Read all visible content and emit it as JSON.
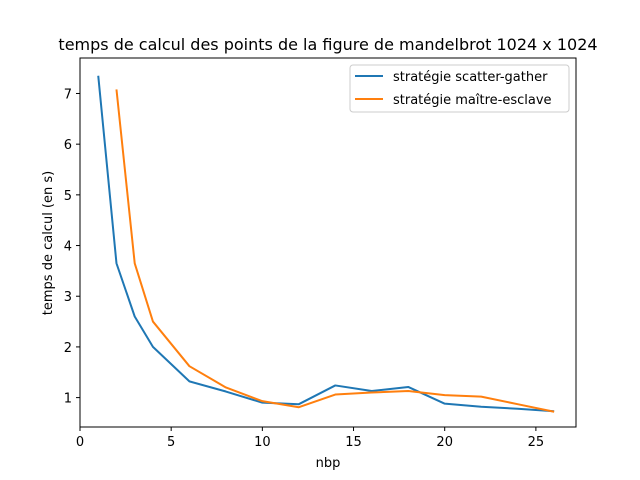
{
  "chart_data": {
    "type": "line",
    "title": "temps de calcul des points de la figure de mandelbrot 1024 x 1024",
    "xlabel": "nbp",
    "ylabel": "temps de calcul (en s)",
    "xlim": [
      0,
      27.2
    ],
    "ylim": [
      0.42,
      7.7
    ],
    "xticks": [
      0,
      5,
      10,
      15,
      20,
      25
    ],
    "yticks": [
      1,
      2,
      3,
      4,
      5,
      6,
      7
    ],
    "grid": false,
    "legend_position": "top-right",
    "series": [
      {
        "name": "stratégie scatter-gather",
        "color": "#1f77b4",
        "x": [
          1,
          2,
          3,
          4,
          6,
          8,
          10,
          12,
          14,
          16,
          18,
          20,
          22,
          24,
          26
        ],
        "y": [
          7.35,
          3.65,
          2.6,
          2.0,
          1.32,
          1.12,
          0.9,
          0.87,
          1.24,
          1.13,
          1.21,
          0.88,
          0.82,
          0.78,
          0.73
        ]
      },
      {
        "name": "stratégie maître-esclave",
        "color": "#ff7f0e",
        "x": [
          2,
          3,
          4,
          6,
          8,
          10,
          12,
          14,
          16,
          18,
          20,
          22,
          24,
          26
        ],
        "y": [
          7.08,
          3.65,
          2.5,
          1.62,
          1.2,
          0.93,
          0.81,
          1.06,
          1.1,
          1.13,
          1.05,
          1.02,
          0.87,
          0.72
        ]
      }
    ]
  }
}
